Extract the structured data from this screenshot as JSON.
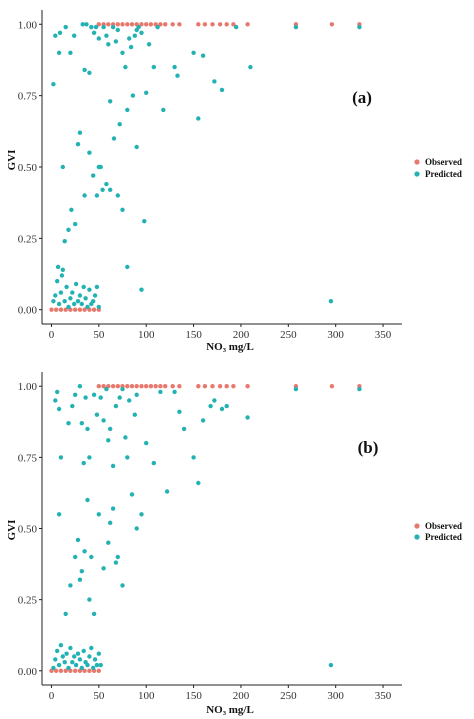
{
  "colors": {
    "observed": "#E8776C",
    "predicted": "#22B2B4",
    "axis": "#222222"
  },
  "chart_data": [
    {
      "type": "scatter",
      "panel_label": "(a)",
      "xlabel": "NO₃ mg/L",
      "ylabel": "GVI",
      "xlim": [
        -10,
        370
      ],
      "ylim": [
        -0.05,
        1.05
      ],
      "xticks": [
        "0",
        "50",
        "100",
        "150",
        "200",
        "250",
        "300",
        "350"
      ],
      "yticks": [
        "0.00",
        "0.25",
        "0.50",
        "0.75",
        "1.00"
      ],
      "grid": false,
      "legend": "right",
      "series": [
        {
          "name": "Observed",
          "color": "#E8776C",
          "points": [
            [
              0,
              0
            ],
            [
              5,
              0
            ],
            [
              10,
              0
            ],
            [
              15,
              0
            ],
            [
              20,
              0
            ],
            [
              25,
              0
            ],
            [
              30,
              0
            ],
            [
              35,
              0
            ],
            [
              40,
              0
            ],
            [
              45,
              0
            ],
            [
              50,
              0
            ],
            [
              50,
              1
            ],
            [
              55,
              1
            ],
            [
              60,
              1
            ],
            [
              65,
              1
            ],
            [
              70,
              1
            ],
            [
              75,
              1
            ],
            [
              80,
              1
            ],
            [
              85,
              1
            ],
            [
              90,
              1
            ],
            [
              95,
              1
            ],
            [
              100,
              1
            ],
            [
              105,
              1
            ],
            [
              110,
              1
            ],
            [
              115,
              1
            ],
            [
              120,
              1
            ],
            [
              128,
              1
            ],
            [
              135,
              1
            ],
            [
              155,
              1
            ],
            [
              162,
              1
            ],
            [
              170,
              1
            ],
            [
              178,
              1
            ],
            [
              185,
              1
            ],
            [
              192,
              1
            ],
            [
              207,
              1
            ],
            [
              258,
              1
            ],
            [
              296,
              1
            ],
            [
              325,
              1
            ]
          ]
        },
        {
          "name": "Predicted",
          "color": "#22B2B4",
          "points": [
            [
              4,
              0.96
            ],
            [
              2,
              0.79
            ],
            [
              8,
              0.9
            ],
            [
              9,
              0.97
            ],
            [
              15,
              0.99
            ],
            [
              20,
              0.9
            ],
            [
              24,
              0.96
            ],
            [
              33,
              1.0
            ],
            [
              35,
              0.84
            ],
            [
              37,
              1.0
            ],
            [
              40,
              0.83
            ],
            [
              42,
              0.99
            ],
            [
              45,
              0.97
            ],
            [
              47,
              0.99
            ],
            [
              50,
              0.95
            ],
            [
              55,
              0.99
            ],
            [
              58,
              0.96
            ],
            [
              60,
              0.93
            ],
            [
              62,
              0.73
            ],
            [
              65,
              0.99
            ],
            [
              68,
              0.94
            ],
            [
              70,
              0.98
            ],
            [
              72,
              0.65
            ],
            [
              75,
              0.9
            ],
            [
              78,
              0.85
            ],
            [
              80,
              0.7
            ],
            [
              82,
              0.95
            ],
            [
              84,
              0.92
            ],
            [
              86,
              0.75
            ],
            [
              88,
              0.96
            ],
            [
              90,
              0.98
            ],
            [
              92,
              0.99
            ],
            [
              95,
              0.97
            ],
            [
              100,
              0.76
            ],
            [
              103,
              0.93
            ],
            [
              108,
              0.85
            ],
            [
              112,
              0.99
            ],
            [
              118,
              0.7
            ],
            [
              130,
              0.85
            ],
            [
              133,
              0.82
            ],
            [
              150,
              0.9
            ],
            [
              155,
              0.67
            ],
            [
              160,
              0.89
            ],
            [
              172,
              0.8
            ],
            [
              180,
              0.77
            ],
            [
              195,
              0.99
            ],
            [
              210,
              0.85
            ],
            [
              258,
              0.99
            ],
            [
              325,
              0.99
            ],
            [
              12,
              0.5
            ],
            [
              14,
              0.24
            ],
            [
              18,
              0.28
            ],
            [
              21,
              0.35
            ],
            [
              25,
              0.3
            ],
            [
              28,
              0.58
            ],
            [
              30,
              0.62
            ],
            [
              35,
              0.4
            ],
            [
              40,
              0.55
            ],
            [
              44,
              0.47
            ],
            [
              48,
              0.4
            ],
            [
              50,
              0.5
            ],
            [
              52,
              0.5
            ],
            [
              54,
              0.42
            ],
            [
              58,
              0.44
            ],
            [
              62,
              0.42
            ],
            [
              66,
              0.6
            ],
            [
              70,
              0.4
            ],
            [
              75,
              0.35
            ],
            [
              80,
              0.15
            ],
            [
              90,
              0.57
            ],
            [
              95,
              0.07
            ],
            [
              98,
              0.31
            ],
            [
              295,
              0.03
            ],
            [
              2,
              0.03
            ],
            [
              4,
              0.05
            ],
            [
              6,
              0.1
            ],
            [
              8,
              0.02
            ],
            [
              10,
              0.06
            ],
            [
              12,
              0.14
            ],
            [
              14,
              0.03
            ],
            [
              16,
              0.08
            ],
            [
              18,
              0.01
            ],
            [
              20,
              0.04
            ],
            [
              22,
              0.06
            ],
            [
              24,
              0.02
            ],
            [
              26,
              0.09
            ],
            [
              28,
              0.03
            ],
            [
              30,
              0.05
            ],
            [
              32,
              0.02
            ],
            [
              34,
              0.08
            ],
            [
              36,
              0.04
            ],
            [
              38,
              0.01
            ],
            [
              40,
              0.07
            ],
            [
              42,
              0.02
            ],
            [
              44,
              0.03
            ],
            [
              46,
              0.05
            ],
            [
              48,
              0.08
            ],
            [
              50,
              0.01
            ],
            [
              7,
              0.15
            ],
            [
              11,
              0.12
            ]
          ]
        }
      ]
    },
    {
      "type": "scatter",
      "panel_label": "(b)",
      "xlabel": "NO₃ mg/L",
      "ylabel": "GVI",
      "xlim": [
        -10,
        370
      ],
      "ylim": [
        -0.05,
        1.05
      ],
      "xticks": [
        "0",
        "50",
        "100",
        "150",
        "200",
        "250",
        "300",
        "350"
      ],
      "yticks": [
        "0.00",
        "0.25",
        "0.50",
        "0.75",
        "1.00"
      ],
      "grid": false,
      "legend": "right",
      "series": [
        {
          "name": "Observed",
          "color": "#E8776C",
          "points": [
            [
              0,
              0
            ],
            [
              5,
              0
            ],
            [
              10,
              0
            ],
            [
              15,
              0
            ],
            [
              20,
              0
            ],
            [
              25,
              0
            ],
            [
              30,
              0
            ],
            [
              35,
              0
            ],
            [
              40,
              0
            ],
            [
              45,
              0
            ],
            [
              50,
              0
            ],
            [
              50,
              1
            ],
            [
              55,
              1
            ],
            [
              60,
              1
            ],
            [
              65,
              1
            ],
            [
              70,
              1
            ],
            [
              75,
              1
            ],
            [
              80,
              1
            ],
            [
              85,
              1
            ],
            [
              90,
              1
            ],
            [
              95,
              1
            ],
            [
              100,
              1
            ],
            [
              105,
              1
            ],
            [
              110,
              1
            ],
            [
              115,
              1
            ],
            [
              120,
              1
            ],
            [
              128,
              1
            ],
            [
              135,
              1
            ],
            [
              155,
              1
            ],
            [
              162,
              1
            ],
            [
              170,
              1
            ],
            [
              178,
              1
            ],
            [
              185,
              1
            ],
            [
              192,
              1
            ],
            [
              207,
              1
            ],
            [
              258,
              1
            ],
            [
              296,
              1
            ],
            [
              325,
              1
            ]
          ]
        },
        {
          "name": "Predicted",
          "color": "#22B2B4",
          "points": [
            [
              4,
              0.95
            ],
            [
              6,
              0.98
            ],
            [
              8,
              0.92
            ],
            [
              10,
              0.75
            ],
            [
              18,
              0.87
            ],
            [
              22,
              0.93
            ],
            [
              25,
              0.97
            ],
            [
              30,
              1.0
            ],
            [
              32,
              0.87
            ],
            [
              34,
              0.73
            ],
            [
              36,
              0.96
            ],
            [
              38,
              0.85
            ],
            [
              40,
              0.75
            ],
            [
              45,
              0.97
            ],
            [
              48,
              0.9
            ],
            [
              52,
              0.96
            ],
            [
              55,
              0.88
            ],
            [
              58,
              0.99
            ],
            [
              60,
              0.81
            ],
            [
              62,
              0.85
            ],
            [
              65,
              0.72
            ],
            [
              68,
              0.93
            ],
            [
              72,
              0.96
            ],
            [
              75,
              0.99
            ],
            [
              78,
              0.82
            ],
            [
              80,
              0.75
            ],
            [
              82,
              0.95
            ],
            [
              85,
              0.62
            ],
            [
              88,
              0.9
            ],
            [
              90,
              0.97
            ],
            [
              95,
              0.55
            ],
            [
              100,
              0.8
            ],
            [
              108,
              0.73
            ],
            [
              115,
              0.98
            ],
            [
              122,
              0.63
            ],
            [
              130,
              0.98
            ],
            [
              135,
              0.91
            ],
            [
              140,
              0.85
            ],
            [
              150,
              0.75
            ],
            [
              155,
              0.66
            ],
            [
              160,
              0.88
            ],
            [
              168,
              0.93
            ],
            [
              172,
              0.95
            ],
            [
              180,
              0.92
            ],
            [
              185,
              0.93
            ],
            [
              207,
              0.89
            ],
            [
              258,
              0.99
            ],
            [
              325,
              0.99
            ],
            [
              8,
              0.55
            ],
            [
              15,
              0.2
            ],
            [
              20,
              0.3
            ],
            [
              25,
              0.4
            ],
            [
              28,
              0.46
            ],
            [
              30,
              0.32
            ],
            [
              32,
              0.35
            ],
            [
              35,
              0.42
            ],
            [
              38,
              0.6
            ],
            [
              40,
              0.25
            ],
            [
              42,
              0.4
            ],
            [
              45,
              0.2
            ],
            [
              50,
              0.55
            ],
            [
              55,
              0.36
            ],
            [
              60,
              0.45
            ],
            [
              62,
              0.52
            ],
            [
              65,
              0.57
            ],
            [
              68,
              0.38
            ],
            [
              70,
              0.4
            ],
            [
              75,
              0.3
            ],
            [
              90,
              0.5
            ],
            [
              295,
              0.02
            ],
            [
              2,
              0.01
            ],
            [
              4,
              0.04
            ],
            [
              6,
              0.07
            ],
            [
              8,
              0.02
            ],
            [
              10,
              0.09
            ],
            [
              12,
              0.05
            ],
            [
              14,
              0.03
            ],
            [
              16,
              0.06
            ],
            [
              18,
              0.01
            ],
            [
              20,
              0.08
            ],
            [
              22,
              0.03
            ],
            [
              24,
              0.05
            ],
            [
              26,
              0.02
            ],
            [
              28,
              0.06
            ],
            [
              30,
              0.04
            ],
            [
              32,
              0.01
            ],
            [
              34,
              0.07
            ],
            [
              36,
              0.03
            ],
            [
              38,
              0.02
            ],
            [
              40,
              0.05
            ],
            [
              42,
              0.08
            ],
            [
              44,
              0.01
            ],
            [
              46,
              0.04
            ],
            [
              48,
              0.02
            ],
            [
              50,
              0.06
            ],
            [
              52,
              0.02
            ]
          ]
        }
      ]
    }
  ]
}
